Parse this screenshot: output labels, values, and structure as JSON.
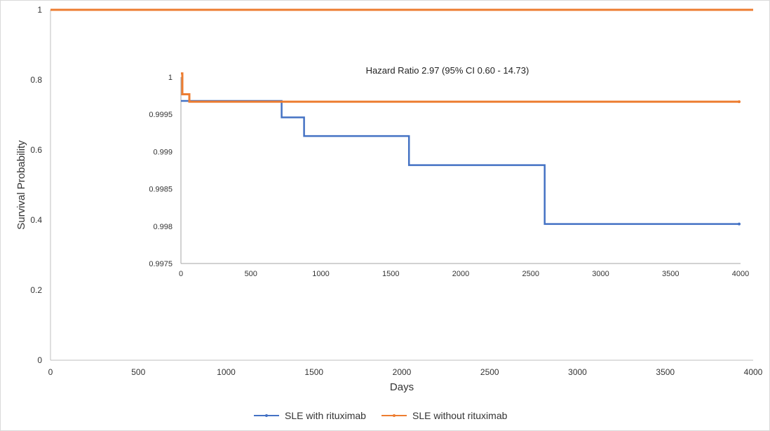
{
  "chart_data": [
    {
      "id": "main",
      "type": "line",
      "step": true,
      "xlabel": "Days",
      "ylabel": "Survival Probability",
      "xlim": [
        0,
        4000
      ],
      "ylim": [
        0,
        1
      ],
      "xticks": [
        "0",
        "500",
        "1000",
        "1500",
        "2000",
        "2500",
        "3000",
        "3500",
        "4000"
      ],
      "yticks": [
        "0",
        "0.2",
        "0.4",
        "0.6",
        "0.8",
        "1"
      ],
      "grid": false,
      "legend": "bottom-center",
      "series": [
        {
          "name": "SLE with rituximab",
          "color": "#4472C4",
          "x": [
            0,
            2600,
            3500,
            4000
          ],
          "y": [
            1.0,
            0.9995,
            0.9995,
            0.9995
          ]
        },
        {
          "name": "SLE without rituximab",
          "color": "#ED7D31",
          "x": [
            0,
            4000
          ],
          "y": [
            1.0,
            1.0
          ]
        }
      ]
    },
    {
      "id": "inset",
      "type": "line",
      "step": true,
      "annotation": "Hazard Ratio 2.97 (95% CI 0.60 - 14.73)",
      "xlim": [
        0,
        4000
      ],
      "ylim": [
        0.9975,
        1.0
      ],
      "xticks": [
        "0",
        "500",
        "1000",
        "1500",
        "2000",
        "2500",
        "3000",
        "3500",
        "4000"
      ],
      "yticks": [
        "0.9975",
        "0.998",
        "0.9985",
        "0.999",
        "0.9995",
        "1"
      ],
      "series": [
        {
          "name": "SLE with rituximab",
          "color": "#4472C4",
          "x": [
            0,
            15,
            720,
            880,
            1630,
            2600,
            3990
          ],
          "y": [
            0.99968,
            0.99968,
            0.99946,
            0.99921,
            0.99882,
            0.99803,
            0.99803
          ]
        },
        {
          "name": "SLE without rituximab",
          "color": "#ED7D31",
          "x": [
            0,
            10,
            60,
            3990
          ],
          "y": [
            1.00005,
            0.99977,
            0.99967,
            0.99967
          ]
        }
      ]
    }
  ]
}
